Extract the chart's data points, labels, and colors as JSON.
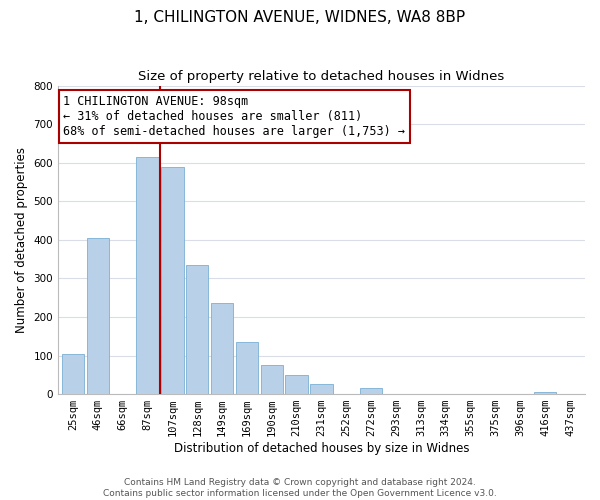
{
  "title": "1, CHILINGTON AVENUE, WIDNES, WA8 8BP",
  "subtitle": "Size of property relative to detached houses in Widnes",
  "xlabel": "Distribution of detached houses by size in Widnes",
  "ylabel": "Number of detached properties",
  "categories": [
    "25sqm",
    "46sqm",
    "66sqm",
    "87sqm",
    "107sqm",
    "128sqm",
    "149sqm",
    "169sqm",
    "190sqm",
    "210sqm",
    "231sqm",
    "252sqm",
    "272sqm",
    "293sqm",
    "313sqm",
    "334sqm",
    "355sqm",
    "375sqm",
    "396sqm",
    "416sqm",
    "437sqm"
  ],
  "values": [
    105,
    405,
    0,
    615,
    590,
    335,
    235,
    135,
    75,
    50,
    25,
    0,
    15,
    0,
    0,
    0,
    0,
    0,
    0,
    5,
    0
  ],
  "bar_color": "#b8d0e8",
  "bar_edge_color": "#7aafd4",
  "vline_x": 3.5,
  "vline_color": "#aa0000",
  "annotation_text": "1 CHILINGTON AVENUE: 98sqm\n← 31% of detached houses are smaller (811)\n68% of semi-detached houses are larger (1,753) →",
  "annotation_box_color": "#ffffff",
  "annotation_box_edgecolor": "#aa0000",
  "ylim": [
    0,
    800
  ],
  "yticks": [
    0,
    100,
    200,
    300,
    400,
    500,
    600,
    700,
    800
  ],
  "footer1": "Contains HM Land Registry data © Crown copyright and database right 2024.",
  "footer2": "Contains public sector information licensed under the Open Government Licence v3.0.",
  "bg_color": "#ffffff",
  "plot_bg_color": "#ffffff",
  "title_fontsize": 11,
  "subtitle_fontsize": 9.5,
  "axis_label_fontsize": 8.5,
  "tick_fontsize": 7.5,
  "annotation_fontsize": 8.5,
  "footer_fontsize": 6.5,
  "grid_color": "#d8dde8"
}
